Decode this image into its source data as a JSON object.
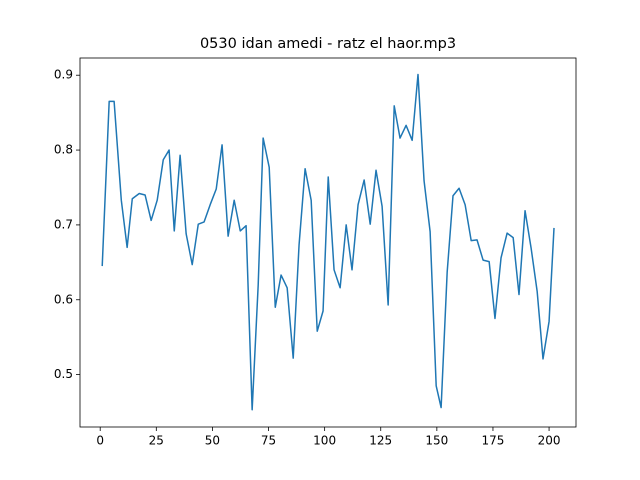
{
  "chart_data": {
    "type": "line",
    "title": "0530 idan amedi - ratz el haor.mp3",
    "x": [
      0.9,
      4.0,
      6.2,
      9.4,
      12.0,
      14.3,
      17.4,
      20.0,
      22.7,
      25.4,
      28.1,
      30.7,
      33.0,
      35.6,
      38.3,
      41.0,
      43.7,
      46.3,
      49.0,
      51.7,
      54.3,
      57.0,
      59.7,
      62.4,
      65.0,
      67.7,
      70.4,
      72.6,
      75.3,
      78.0,
      80.6,
      83.3,
      86.0,
      88.6,
      91.3,
      94.0,
      96.7,
      99.3,
      101.6,
      104.2,
      106.9,
      109.6,
      112.2,
      114.9,
      117.6,
      120.3,
      122.9,
      125.6,
      128.3,
      131.0,
      133.6,
      136.3,
      139.0,
      141.6,
      144.3,
      147.0,
      149.7,
      151.9,
      154.6,
      157.2,
      159.9,
      162.6,
      165.3,
      167.9,
      170.6,
      173.3,
      175.9,
      178.6,
      181.3,
      184.0,
      186.6,
      189.3,
      192.0,
      194.7,
      197.3,
      200.0,
      202.2
    ],
    "series": [
      {
        "color": "#1f77b4",
        "values": [
          0.645,
          0.865,
          0.865,
          0.733,
          0.67,
          0.735,
          0.742,
          0.74,
          0.706,
          0.733,
          0.787,
          0.8,
          0.692,
          0.793,
          0.688,
          0.647,
          0.701,
          0.704,
          0.727,
          0.748,
          0.807,
          0.685,
          0.733,
          0.692,
          0.699,
          0.453,
          0.62,
          0.816,
          0.777,
          0.59,
          0.633,
          0.616,
          0.522,
          0.673,
          0.775,
          0.733,
          0.558,
          0.585,
          0.764,
          0.64,
          0.616,
          0.7,
          0.64,
          0.727,
          0.76,
          0.701,
          0.773,
          0.725,
          0.593,
          0.859,
          0.816,
          0.833,
          0.813,
          0.901,
          0.759,
          0.691,
          0.485,
          0.456,
          0.637,
          0.739,
          0.749,
          0.727,
          0.679,
          0.68,
          0.653,
          0.651,
          0.575,
          0.656,
          0.689,
          0.683,
          0.607,
          0.719,
          0.669,
          0.611,
          0.521,
          0.571,
          0.696
        ]
      }
    ],
    "xlim": [
      -9,
      212
    ],
    "ylim": [
      0.43,
      0.923
    ],
    "xticks": [
      0,
      25,
      50,
      75,
      100,
      125,
      150,
      175,
      200
    ],
    "yticks": [
      0.5,
      0.6,
      0.7,
      0.8,
      0.9
    ]
  }
}
